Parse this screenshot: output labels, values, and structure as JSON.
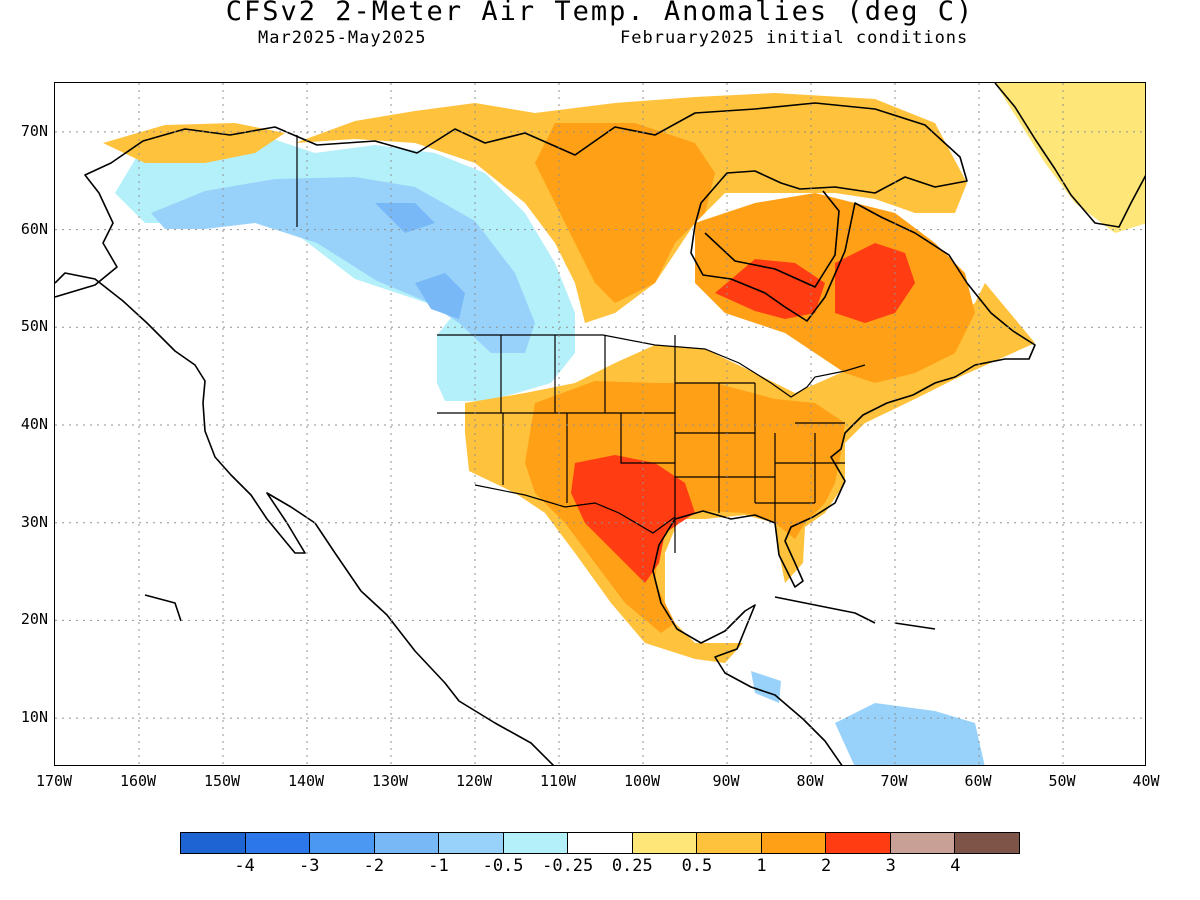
{
  "title": "CFSv2 2-Meter Air Temp. Anomalies (deg C)",
  "subtitle_left": "Mar2025-May2025",
  "subtitle_right": "February2025 initial conditions",
  "lat_labels": [
    "70N",
    "60N",
    "50N",
    "40N",
    "30N",
    "20N",
    "10N"
  ],
  "lon_labels": [
    "170W",
    "160W",
    "150W",
    "140W",
    "130W",
    "120W",
    "110W",
    "100W",
    "90W",
    "80W",
    "70W",
    "60W",
    "50W",
    "40W"
  ],
  "colorbar": {
    "colors": [
      "#1e64d2",
      "#2c78ea",
      "#4a98f2",
      "#78b8f6",
      "#98d2fa",
      "#b4f0fa",
      "#ffffff",
      "#ffe678",
      "#ffc23c",
      "#ffa016",
      "#ff3c12",
      "#c8a096",
      "#7e5448"
    ],
    "tick_labels": [
      "-4",
      "-3",
      "-2",
      "-1",
      "-0.5",
      "-0.25",
      "0.25",
      "0.5",
      "1",
      "2",
      "3",
      "4"
    ]
  },
  "map": {
    "lat_range": [
      5,
      75
    ],
    "lon_range": [
      -170,
      -40
    ],
    "grid": "dotted",
    "regions": [
      {
        "level": "-0.5",
        "color": "#b4f0fa",
        "name": "western-cool-anomaly"
      },
      {
        "level": "-1",
        "color": "#98d2fa",
        "name": "alaska-bc-cool-anomaly"
      },
      {
        "level": "-2",
        "color": "#78b8f6",
        "name": "bc-coast-cool-core"
      },
      {
        "level": "-0.5",
        "color": "#98d2fa",
        "name": "caribbean-cool-anomaly"
      },
      {
        "level": "0.5",
        "color": "#ffe678",
        "name": "greenland-warm-edge"
      },
      {
        "level": "1",
        "color": "#ffc23c",
        "name": "broad-warm-anomaly"
      },
      {
        "level": "2",
        "color": "#ffa016",
        "name": "central-warm-anomaly"
      },
      {
        "level": "3",
        "color": "#ff3c12",
        "name": "southern-plains-hot-core"
      },
      {
        "level": "3",
        "color": "#ff3c12",
        "name": "quebec-hot-core"
      }
    ]
  }
}
